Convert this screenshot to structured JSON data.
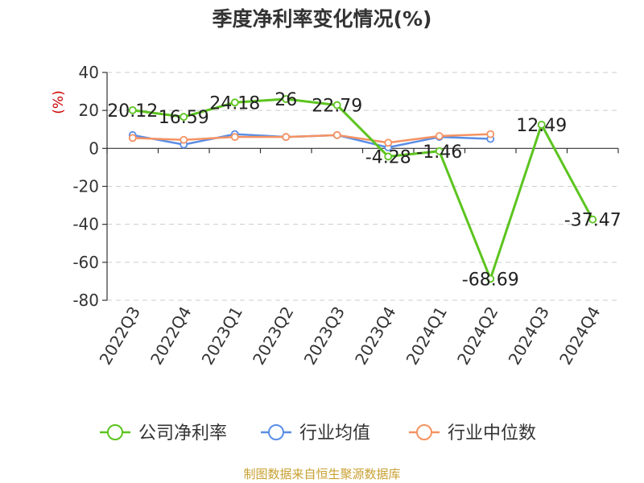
{
  "chart_data": {
    "type": "line",
    "title": "季度净利率变化情况(%)",
    "ylabel": "(%)",
    "xlabel": "",
    "ylim": [
      -80,
      40
    ],
    "yticks": [
      40,
      20,
      0,
      -20,
      -40,
      -60,
      -80
    ],
    "grid": true,
    "legend_position": "bottom",
    "categories": [
      "2022Q3",
      "2022Q4",
      "2023Q1",
      "2023Q2",
      "2023Q3",
      "2023Q4",
      "2024Q1",
      "2024Q2",
      "2024Q3",
      "2024Q4"
    ],
    "series": [
      {
        "name": "公司净利率",
        "color": "#5cc41f",
        "values": [
          20.12,
          16.59,
          24.18,
          26,
          22.79,
          -4.28,
          -1.46,
          -68.69,
          12.49,
          -37.47
        ],
        "labels": [
          "20.12",
          "16.59",
          "24.18",
          "26",
          "22.79",
          "-4.28",
          "-1.46",
          "-68.69",
          "12.49",
          "-37.47"
        ]
      },
      {
        "name": "行业均值",
        "color": "#5b8ee6",
        "values": [
          7,
          2,
          7.5,
          6,
          7,
          0.5,
          6,
          5,
          null,
          null
        ]
      },
      {
        "name": "行业中位数",
        "color": "#f59262",
        "values": [
          5.5,
          4.5,
          6,
          6,
          7,
          3,
          6.5,
          7.5,
          null,
          null
        ]
      }
    ]
  },
  "source": "制图数据来自恒生聚源数据库"
}
